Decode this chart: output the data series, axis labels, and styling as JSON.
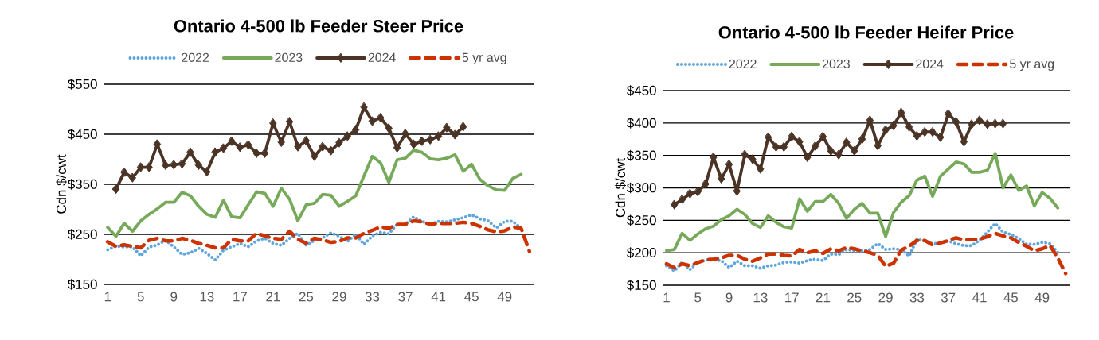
{
  "chart_data": [
    {
      "type": "line",
      "title": "Ontario 4-500 lb Feeder Steer Price",
      "ylabel": "Cdn $/cwt",
      "legend": "top",
      "grid": "y",
      "x": [
        1,
        2,
        3,
        4,
        5,
        6,
        7,
        8,
        9,
        10,
        11,
        12,
        13,
        14,
        15,
        16,
        17,
        18,
        19,
        20,
        21,
        22,
        23,
        24,
        25,
        26,
        27,
        28,
        29,
        30,
        31,
        32,
        33,
        34,
        35,
        36,
        37,
        38,
        39,
        40,
        41,
        42,
        43,
        44,
        45,
        46,
        47,
        48,
        49,
        50,
        51,
        52
      ],
      "xlim": [
        0.5,
        52.5
      ],
      "xticks": [
        1,
        5,
        9,
        13,
        17,
        21,
        25,
        29,
        33,
        37,
        41,
        45,
        49
      ],
      "ylim": [
        150,
        550
      ],
      "yticks": [
        {
          "value": 150,
          "label": "$150"
        },
        {
          "value": 250,
          "label": "$250"
        },
        {
          "value": 350,
          "label": "$350"
        },
        {
          "value": 450,
          "label": "$450"
        },
        {
          "value": 550,
          "label": "$550"
        }
      ],
      "series": [
        {
          "name": "2022",
          "color": "#5ea5dd",
          "line_style": "dotted",
          "marker": "none",
          "values": [
            219,
            226,
            225,
            225,
            207,
            224,
            229,
            238,
            225,
            210,
            213,
            222,
            212,
            199,
            218,
            225,
            232,
            225,
            237,
            242,
            232,
            228,
            242,
            252,
            228,
            238,
            243,
            253,
            246,
            236,
            250,
            230,
            247,
            254,
            251,
            270,
            270,
            285,
            276,
            270,
            276,
            275,
            279,
            283,
            289,
            281,
            277,
            263,
            276,
            276,
            262,
            null
          ]
        },
        {
          "name": "2023",
          "color": "#77a95a",
          "line_style": "solid",
          "marker": "none",
          "values": [
            264,
            246,
            272,
            256,
            277,
            290,
            301,
            314,
            314,
            334,
            327,
            306,
            290,
            284,
            318,
            285,
            283,
            309,
            335,
            332,
            306,
            342,
            320,
            277,
            309,
            312,
            330,
            328,
            306,
            316,
            327,
            367,
            406,
            393,
            354,
            399,
            402,
            418,
            414,
            401,
            399,
            402,
            409,
            376,
            390,
            360,
            347,
            339,
            338,
            362,
            370,
            null
          ]
        },
        {
          "name": "2024",
          "color": "#4b3426",
          "line_style": "solid",
          "marker": "diamond",
          "values": [
            null,
            340,
            374,
            363,
            384,
            384,
            430,
            388,
            389,
            391,
            414,
            388,
            375,
            414,
            422,
            436,
            424,
            429,
            412,
            412,
            472,
            434,
            475,
            425,
            437,
            406,
            425,
            417,
            433,
            446,
            459,
            504,
            476,
            483,
            462,
            423,
            451,
            430,
            436,
            439,
            446,
            463,
            449,
            465,
            null,
            null,
            null,
            null,
            null,
            null,
            null,
            null
          ]
        },
        {
          "name": "5 yr avg",
          "color": "#cc3300",
          "line_style": "dashed",
          "marker": "none",
          "values": [
            235,
            226,
            229,
            226,
            223,
            238,
            242,
            237,
            237,
            242,
            238,
            232,
            228,
            223,
            223,
            240,
            237,
            237,
            252,
            247,
            242,
            240,
            256,
            240,
            232,
            242,
            239,
            234,
            236,
            243,
            243,
            252,
            258,
            265,
            262,
            270,
            270,
            277,
            275,
            270,
            272,
            272,
            272,
            274,
            272,
            266,
            259,
            255,
            257,
            265,
            262,
            216
          ]
        }
      ]
    },
    {
      "type": "line",
      "title": "Ontario 4-500 lb Feeder Heifer Price",
      "ylabel": "Cdn $/cwt",
      "legend": "top",
      "grid": "y",
      "x": [
        1,
        2,
        3,
        4,
        5,
        6,
        7,
        8,
        9,
        10,
        11,
        12,
        13,
        14,
        15,
        16,
        17,
        18,
        19,
        20,
        21,
        22,
        23,
        24,
        25,
        26,
        27,
        28,
        29,
        30,
        31,
        32,
        33,
        34,
        35,
        36,
        37,
        38,
        39,
        40,
        41,
        42,
        43,
        44,
        45,
        46,
        47,
        48,
        49,
        50,
        51,
        52
      ],
      "xlim": [
        0.5,
        52.5
      ],
      "xticks": [
        1,
        5,
        9,
        13,
        17,
        21,
        25,
        29,
        33,
        37,
        41,
        45,
        49
      ],
      "ylim": [
        150,
        450
      ],
      "yticks": [
        {
          "value": 150,
          "label": "$150"
        },
        {
          "value": 200,
          "label": "$200"
        },
        {
          "value": 250,
          "label": "$250"
        },
        {
          "value": 300,
          "label": "$300"
        },
        {
          "value": 350,
          "label": "$350"
        },
        {
          "value": 400,
          "label": "$400"
        },
        {
          "value": 450,
          "label": "$450"
        }
      ],
      "series": [
        {
          "name": "2022",
          "color": "#5ea5dd",
          "line_style": "dotted",
          "marker": "none",
          "values": [
            180,
            172,
            185,
            174,
            185,
            189,
            189,
            188,
            177,
            187,
            180,
            180,
            176,
            180,
            181,
            185,
            186,
            184,
            188,
            190,
            188,
            198,
            197,
            205,
            203,
            203,
            205,
            214,
            205,
            206,
            205,
            195,
            221,
            218,
            214,
            215,
            218,
            214,
            211,
            211,
            219,
            232,
            245,
            232,
            228,
            222,
            213,
            213,
            216,
            214,
            200,
            null
          ]
        },
        {
          "name": "2023",
          "color": "#77a95a",
          "line_style": "solid",
          "marker": "none",
          "values": [
            203,
            205,
            230,
            219,
            229,
            237,
            241,
            251,
            257,
            267,
            259,
            245,
            239,
            257,
            247,
            240,
            238,
            283,
            264,
            279,
            279,
            290,
            276,
            253,
            267,
            276,
            261,
            261,
            225,
            262,
            278,
            288,
            312,
            318,
            287,
            318,
            329,
            340,
            337,
            324,
            324,
            327,
            353,
            300,
            320,
            296,
            303,
            272,
            293,
            284,
            269,
            null
          ]
        },
        {
          "name": "2024",
          "color": "#4b3426",
          "line_style": "solid",
          "marker": "diamond",
          "values": [
            null,
            274,
            282,
            291,
            294,
            306,
            347,
            314,
            336,
            295,
            351,
            344,
            329,
            378,
            363,
            363,
            379,
            371,
            347,
            364,
            379,
            357,
            351,
            370,
            357,
            375,
            404,
            365,
            389,
            396,
            416,
            394,
            380,
            386,
            386,
            378,
            414,
            402,
            371,
            398,
            404,
            398,
            399,
            399,
            null,
            null,
            null,
            null,
            null,
            null,
            null,
            null
          ]
        },
        {
          "name": "5 yr avg",
          "color": "#cc3300",
          "line_style": "dashed",
          "marker": "none",
          "values": [
            183,
            177,
            183,
            180,
            185,
            189,
            190,
            192,
            196,
            196,
            190,
            187,
            192,
            198,
            198,
            196,
            195,
            205,
            200,
            203,
            199,
            206,
            203,
            208,
            206,
            203,
            200,
            196,
            179,
            184,
            204,
            210,
            219,
            219,
            212,
            215,
            219,
            223,
            220,
            220,
            221,
            225,
            230,
            226,
            223,
            216,
            210,
            203,
            206,
            211,
            192,
            168
          ]
        }
      ]
    }
  ]
}
